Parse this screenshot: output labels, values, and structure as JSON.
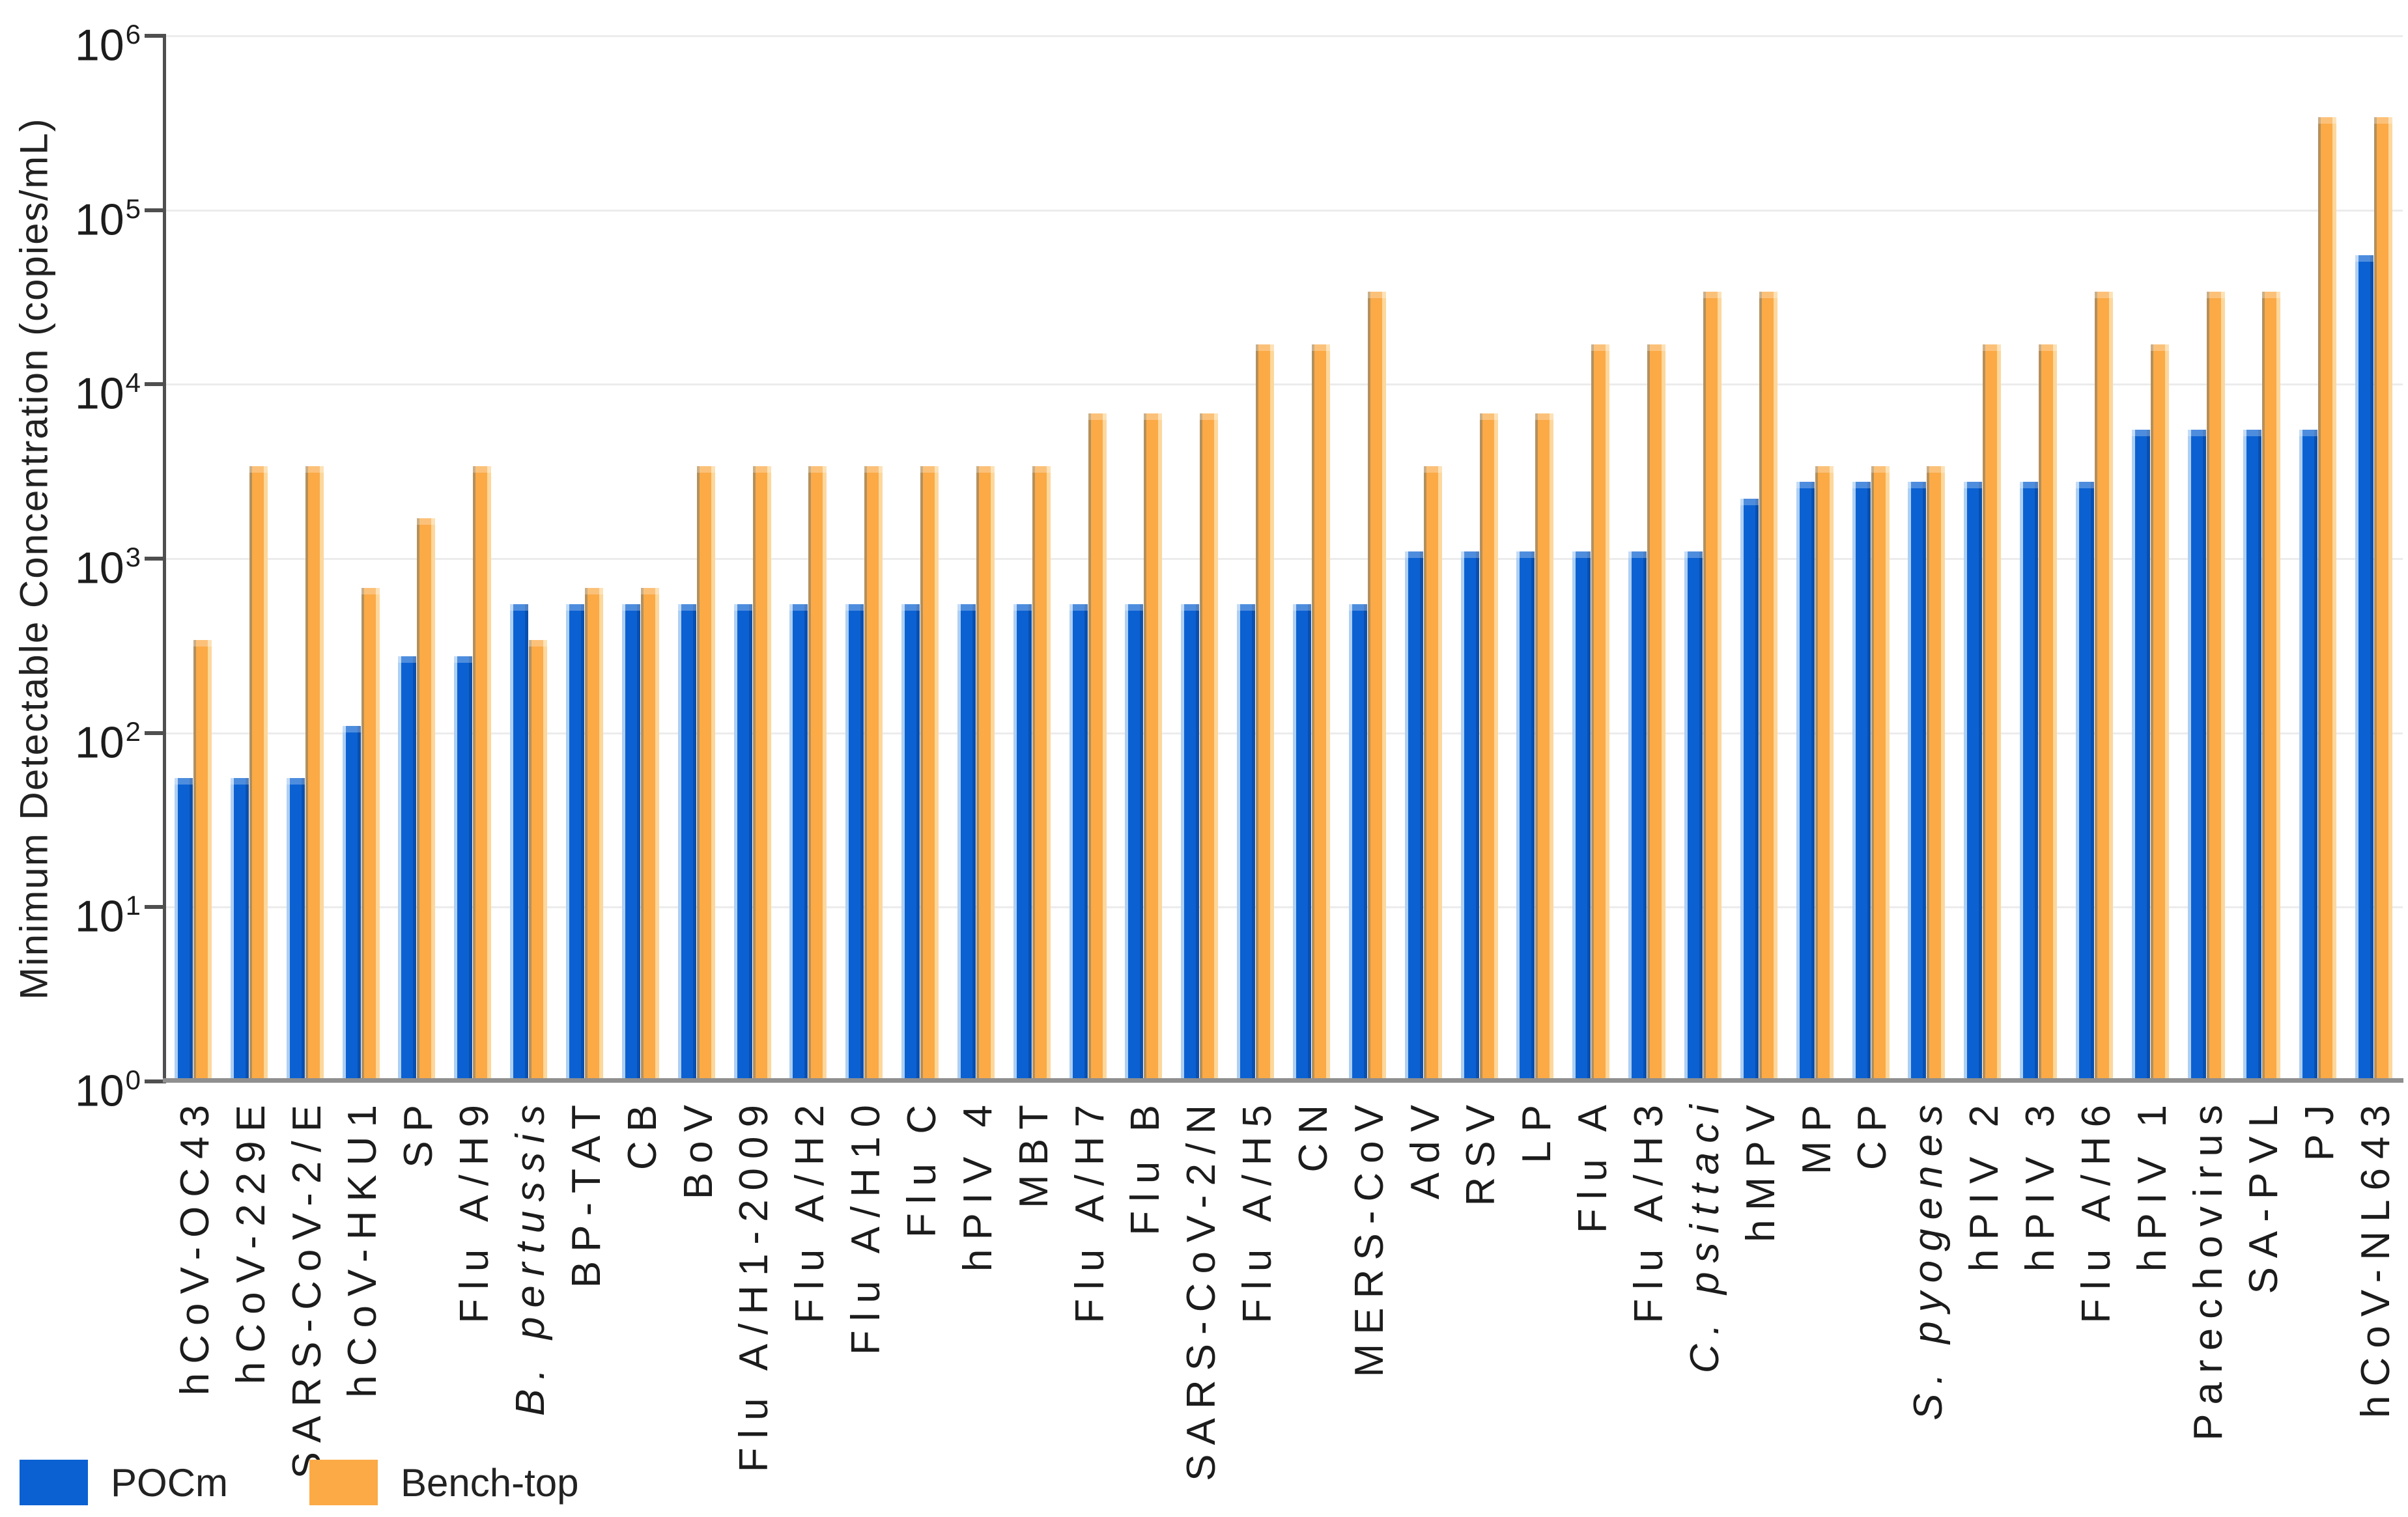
{
  "chart_data": {
    "type": "bar",
    "title": "",
    "xlabel": "",
    "ylabel": "Minimum Detectable Concentration (copies/mL)",
    "y_scale": "log10",
    "ylim": [
      1,
      1000000
    ],
    "y_tick_exponents": [
      6,
      5,
      4,
      3,
      2,
      1,
      0
    ],
    "grid": true,
    "legend_position": "bottom-left",
    "categories": [
      "hCoV-OC43",
      "hCoV-229E",
      "SARS-CoV-2/E",
      "hCoV-HKU1",
      "SP",
      "Flu A/H9",
      "B. pertussis",
      "BP-TAT",
      "CB",
      "BoV",
      "Flu A/H1-2009",
      "Flu A/H2",
      "Flu A/H10",
      "Flu C",
      "hPIV 4",
      "MBT",
      "Flu A/H7",
      "Flu B",
      "SARS-CoV-2/N",
      "Flu A/H5",
      "CN",
      "MERS-CoV",
      "AdV",
      "RSV",
      "LP",
      "Flu A",
      "Flu A/H3",
      "C. psittaci",
      "hMPV",
      "MP",
      "CP",
      "S. pyogenes",
      "hPIV 2",
      "hPIV 3",
      "Flu A/H6",
      "hPIV 1",
      "Parechovirus",
      "SA-PVL",
      "PJ",
      "hCoV-NL643"
    ],
    "italic_categories": [
      "B. pertussis",
      "C. psittaci",
      "S. pyogenes"
    ],
    "series": [
      {
        "name": "POCm",
        "color": "#0b61d2",
        "color_light": "#aecff2",
        "color_dark": "#0a4fae",
        "values": [
          55,
          55,
          55,
          110,
          275,
          275,
          550,
          550,
          550,
          550,
          550,
          550,
          550,
          550,
          550,
          550,
          550,
          550,
          550,
          550,
          550,
          550,
          1100,
          1100,
          1100,
          1100,
          1100,
          1100,
          2200,
          2750,
          2750,
          2750,
          2750,
          2750,
          2750,
          5500,
          5500,
          5500,
          5500,
          55000
        ]
      },
      {
        "name": "Bench-top",
        "color": "#fbaa46",
        "color_light": "#b3905e",
        "color_dark": "#fdd79b",
        "values": [
          340,
          3400,
          3400,
          680,
          1700,
          3400,
          340,
          680,
          680,
          3400,
          3400,
          3400,
          3400,
          3400,
          3400,
          3400,
          6800,
          6800,
          6800,
          17000,
          17000,
          34000,
          3400,
          6800,
          6800,
          17000,
          17000,
          34000,
          34000,
          3400,
          3400,
          3400,
          17000,
          17000,
          34000,
          17000,
          34000,
          34000,
          340000,
          340000
        ]
      }
    ]
  }
}
